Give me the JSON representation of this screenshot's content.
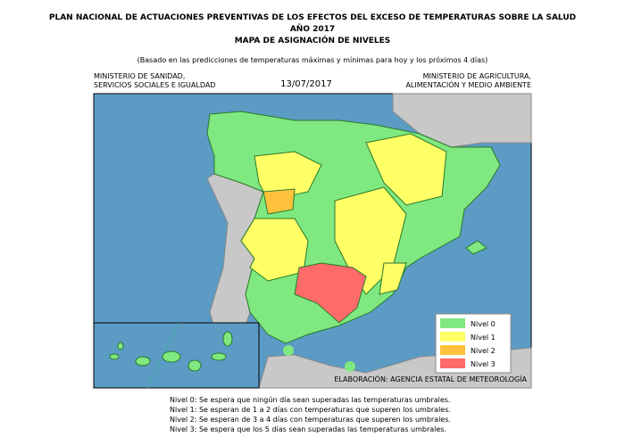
{
  "header": {
    "title": "PLAN NACIONAL DE ACTUACIONES PREVENTIVAS DE LOS EFECTOS DEL EXCESO DE TEMPERATURAS SOBRE LA SALUD",
    "year": "AÑO 2017",
    "subtitle": "MAPA DE ASIGNACIÓN DE NIVELES",
    "note": "(Basado en las predicciones de temperaturas máximas y mínimas para hoy y los próximos 4 días)",
    "left": [
      "MINISTERIO DE SANIDAD,",
      "SERVICIOS SOCIALES E IGUALDAD"
    ],
    "date": "13/07/2017",
    "right": [
      "MINISTERIO DE AGRICULTURA,",
      "ALIMENTACIÓN Y MEDIO AMBIENTE"
    ]
  },
  "legend": [
    {
      "label": "Nivel 0",
      "color": "#80e880"
    },
    {
      "label": "Nivel 1",
      "color": "#ffff66"
    },
    {
      "label": "Nivel 2",
      "color": "#ffc23c"
    },
    {
      "label": "Nivel 3",
      "color": "#ff6a6a"
    }
  ],
  "credit": "ELABORACIÓN: AGENCIA ESTATAL DE METEOROLOGÍA",
  "footnotes": [
    "Nivel 0: Se espera que ningún día sean superadas las temperaturas umbrales.",
    "Nivel 1: Se esperan de 1 a 2 días con temperaturas que superen los umbrales.",
    "Nivel 2: Se esperan de 3 a 4 días con temperaturas que superen los umbrales.",
    "Nivel 3: Se espera que los 5 días sean superadas las temperaturas umbrales."
  ]
}
